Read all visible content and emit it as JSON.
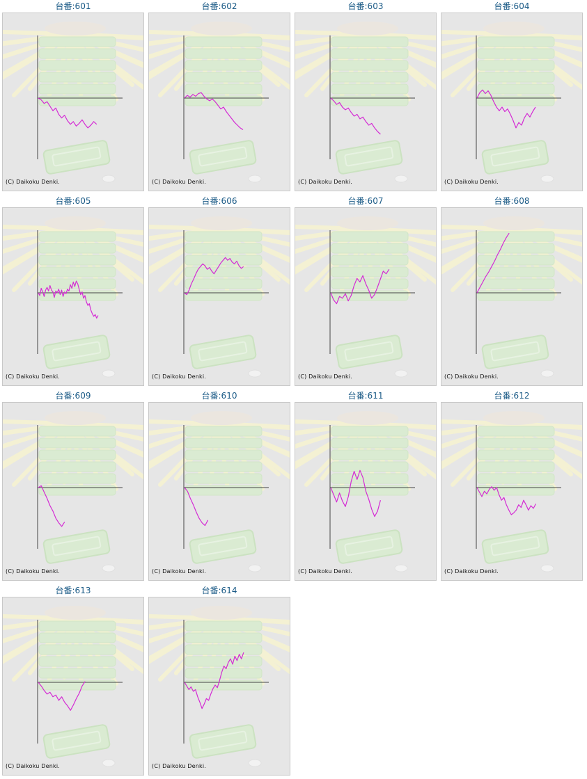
{
  "title_prefix": "台番:",
  "copyright": "(C) Daikoku Denki.",
  "colors": {
    "line": "#d42bd4",
    "axis": "#444444",
    "title": "#1a5a86",
    "panel_bg": "#e6e6e6"
  },
  "chart_data": [
    {
      "type": "line",
      "title": "台番:601",
      "machine": "601",
      "values": [
        0,
        -0.2,
        -0.6,
        -0.4,
        -0.9,
        -1.4,
        -1.1,
        -1.8,
        -2.2,
        -1.9,
        -2.5,
        -2.9,
        -2.6,
        -3.1,
        -2.8,
        -2.4,
        -2.9,
        -3.3,
        -3.0,
        -2.6,
        -2.9
      ]
    },
    {
      "type": "line",
      "title": "台番:602",
      "machine": "602",
      "values": [
        0,
        0.3,
        0.1,
        0.4,
        0.2,
        0.5,
        0.6,
        0.2,
        -0.1,
        -0.3,
        -0.1,
        -0.4,
        -0.8,
        -1.2,
        -1.0,
        -1.5,
        -1.9,
        -2.3,
        -2.7,
        -3.0,
        -3.3,
        -3.5
      ]
    },
    {
      "type": "line",
      "title": "台番:603",
      "machine": "603",
      "values": [
        0,
        -0.3,
        -0.7,
        -0.5,
        -1.0,
        -1.3,
        -1.1,
        -1.6,
        -2.0,
        -1.8,
        -2.3,
        -2.1,
        -2.6,
        -3.0,
        -2.8,
        -3.3,
        -3.7,
        -4.0
      ]
    },
    {
      "type": "line",
      "title": "台番:604",
      "machine": "604",
      "values": [
        0,
        0.6,
        0.9,
        0.5,
        0.8,
        0.3,
        -0.4,
        -1.0,
        -1.4,
        -1.0,
        -1.5,
        -1.2,
        -1.8,
        -2.5,
        -3.3,
        -2.7,
        -3.0,
        -2.2,
        -1.7,
        -2.1,
        -1.5,
        -1.0
      ]
    },
    {
      "type": "line",
      "title": "台番:605",
      "machine": "605",
      "values": [
        0,
        -0.3,
        0.5,
        0.1,
        -0.4,
        0.3,
        0.6,
        0.2,
        0.8,
        0.3,
        0.1,
        -0.5,
        0.2,
        0.0,
        0.4,
        -0.2,
        0.3,
        -0.4,
        0.1,
        -0.1,
        0.4,
        0.2,
        0.9,
        0.5,
        1.2,
        0.7,
        1.3,
        1.0,
        0.4,
        -0.2,
        0.1,
        -0.6,
        -0.3,
        -1.0,
        -1.4,
        -1.2,
        -1.9,
        -2.3,
        -2.6,
        -2.4,
        -2.8,
        -2.5
      ]
    },
    {
      "type": "line",
      "title": "台番:606",
      "machine": "606",
      "values": [
        0,
        -0.2,
        0.3,
        1.0,
        1.5,
        2.1,
        2.6,
        2.9,
        3.2,
        3.0,
        2.6,
        2.8,
        2.4,
        2.1,
        2.5,
        2.9,
        3.3,
        3.6,
        3.9,
        3.6,
        3.8,
        3.4,
        3.2,
        3.5,
        3.0,
        2.7,
        2.9
      ]
    },
    {
      "type": "line",
      "title": "台番:607",
      "machine": "607",
      "values": [
        0,
        -0.8,
        -1.2,
        -0.4,
        -0.6,
        -0.1,
        -0.9,
        -0.3,
        0.8,
        1.6,
        1.2,
        1.9,
        1.0,
        0.3,
        -0.6,
        -0.2,
        0.6,
        1.5,
        2.4,
        2.1,
        2.6
      ]
    },
    {
      "type": "line",
      "title": "台番:608",
      "machine": "608",
      "values": [
        0,
        0.6,
        1.2,
        1.8,
        2.3,
        2.9,
        3.5,
        4.2,
        4.8,
        5.5,
        6.1,
        6.6
      ]
    },
    {
      "type": "line",
      "title": "台番:609",
      "machine": "609",
      "values": [
        0,
        0.2,
        -0.5,
        -1.2,
        -2.0,
        -2.6,
        -3.4,
        -3.9,
        -4.3,
        -3.8
      ]
    },
    {
      "type": "line",
      "title": "台番:610",
      "machine": "610",
      "values": [
        0,
        -0.4,
        -1.2,
        -1.9,
        -2.7,
        -3.4,
        -3.9,
        -4.2,
        -3.6
      ]
    },
    {
      "type": "line",
      "title": "台番:611",
      "machine": "611",
      "values": [
        0,
        -0.8,
        -1.6,
        -0.6,
        -1.5,
        -2.1,
        -1.0,
        0.7,
        1.8,
        0.9,
        1.9,
        1.1,
        -0.4,
        -1.3,
        -2.4,
        -3.2,
        -2.6,
        -1.4
      ]
    },
    {
      "type": "line",
      "title": "台番:612",
      "machine": "612",
      "values": [
        0,
        -0.5,
        -1.0,
        -0.4,
        -0.7,
        -0.2,
        0.1,
        -0.3,
        0.0,
        -0.8,
        -1.4,
        -1.1,
        -1.9,
        -2.5,
        -3.0,
        -2.8,
        -2.5,
        -1.9,
        -2.2,
        -1.4,
        -1.9,
        -2.5,
        -2.0,
        -2.3,
        -1.8
      ]
    },
    {
      "type": "line",
      "title": "台番:613",
      "machine": "613",
      "values": [
        0,
        -0.4,
        -0.9,
        -1.3,
        -1.1,
        -1.6,
        -1.4,
        -2.0,
        -1.6,
        -2.2,
        -2.6,
        -3.1,
        -2.5,
        -1.8,
        -1.2,
        -0.4,
        0.1
      ]
    },
    {
      "type": "line",
      "title": "台番:614",
      "machine": "614",
      "values": [
        0,
        -0.4,
        -0.8,
        -0.5,
        -1.0,
        -0.8,
        -1.6,
        -2.2,
        -2.9,
        -2.4,
        -1.8,
        -2.0,
        -1.3,
        -0.7,
        -0.3,
        -0.6,
        0.2,
        1.1,
        1.8,
        1.5,
        2.2,
        2.6,
        2.0,
        2.9,
        2.4,
        3.1,
        2.6,
        3.3
      ]
    }
  ]
}
